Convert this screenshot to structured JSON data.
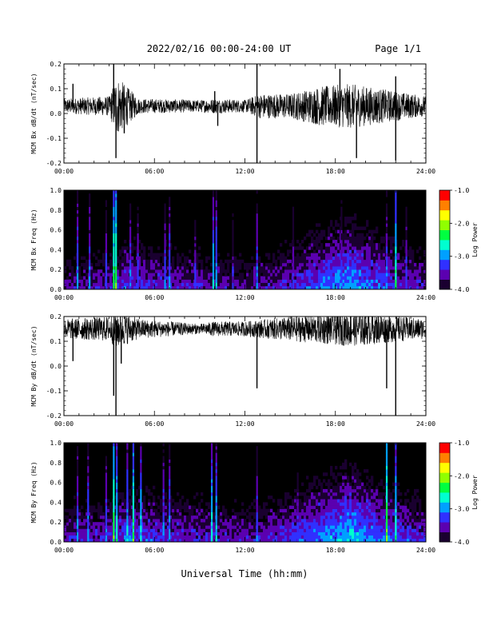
{
  "header": {
    "title": "2022/02/16  00:00-24:00 UT",
    "page": "Page 1/1"
  },
  "footer": {
    "xlabel": "Universal Time (hh:mm)"
  },
  "colors": {
    "background": "#ffffff",
    "trace": "#000000",
    "spectrogram_background": "#000000",
    "colorbar": [
      "#1a0030",
      "#5b00b0",
      "#3030ff",
      "#00a0ff",
      "#00ffd0",
      "#00ff40",
      "#90ff00",
      "#ffff00",
      "#ff8000",
      "#ff0000"
    ]
  },
  "chart_data": [
    {
      "type": "line",
      "ylabel": "MCM Bx dB/dt (nT/sec)",
      "ylim": [
        -0.2,
        0.2
      ],
      "yticks": [
        "0.2",
        "0.1",
        "0.0",
        "-0.1",
        "-0.2"
      ],
      "xlim": [
        0,
        24
      ],
      "xticks": [
        "00:00",
        "06:00",
        "12:00",
        "18:00",
        "24:00"
      ],
      "baseline": 0.03,
      "noise_envelope": {
        "x": [
          0,
          3,
          3.5,
          5,
          9,
          10,
          12,
          13,
          15,
          17,
          19,
          21,
          24
        ],
        "amplitude": [
          0.03,
          0.04,
          0.12,
          0.03,
          0.025,
          0.03,
          0.025,
          0.05,
          0.05,
          0.08,
          0.09,
          0.07,
          0.04
        ]
      },
      "spikes": [
        {
          "x": 0.6,
          "y": 0.12
        },
        {
          "x": 3.3,
          "y": 0.2
        },
        {
          "x": 3.45,
          "y": -0.18
        },
        {
          "x": 4.0,
          "y": -0.08
        },
        {
          "x": 10.0,
          "y": 0.09
        },
        {
          "x": 10.2,
          "y": -0.05
        },
        {
          "x": 12.8,
          "y": 0.2
        },
        {
          "x": 12.8,
          "y": -0.2
        },
        {
          "x": 18.3,
          "y": 0.18
        },
        {
          "x": 19.4,
          "y": -0.18
        },
        {
          "x": 22.0,
          "y": 0.15
        },
        {
          "x": 22.0,
          "y": -0.19
        }
      ]
    },
    {
      "type": "heatmap",
      "ylabel": "MCM Bx Freq (Hz)",
      "ylim": [
        0.0,
        1.0
      ],
      "yticks": [
        "1.0",
        "0.8",
        "0.6",
        "0.4",
        "0.2",
        "0.0"
      ],
      "xlim": [
        0,
        24
      ],
      "xticks": [
        "00:00",
        "06:00",
        "12:00",
        "18:00",
        "24:00"
      ],
      "colorbar": {
        "label": "Log Power",
        "ticks": [
          "-1.0",
          "-2.0",
          "-3.0",
          "-4.0"
        ],
        "range": [
          -4.0,
          -1.0
        ]
      },
      "background_power": {
        "x": [
          0,
          3,
          4,
          9,
          12,
          15,
          17,
          19,
          21,
          24
        ],
        "level": [
          -3.6,
          -3.5,
          -3.3,
          -3.5,
          -3.6,
          -3.4,
          -3.1,
          -2.9,
          -3.2,
          -3.5
        ]
      },
      "vertical_streaks": [
        {
          "x": 0.9,
          "power": -2.9
        },
        {
          "x": 1.7,
          "power": -3.0
        },
        {
          "x": 2.8,
          "power": -3.1
        },
        {
          "x": 3.3,
          "power": -2.3
        },
        {
          "x": 3.45,
          "power": -2.2
        },
        {
          "x": 4.4,
          "power": -3.0
        },
        {
          "x": 4.9,
          "power": -3.1
        },
        {
          "x": 6.7,
          "power": -3.0
        },
        {
          "x": 7.0,
          "power": -2.9
        },
        {
          "x": 8.7,
          "power": -3.2
        },
        {
          "x": 9.9,
          "power": -2.7
        },
        {
          "x": 10.1,
          "power": -2.8
        },
        {
          "x": 11.2,
          "power": -3.3
        },
        {
          "x": 12.8,
          "power": -3.0
        },
        {
          "x": 15.2,
          "power": -3.2
        },
        {
          "x": 18.4,
          "power": -3.1
        },
        {
          "x": 21.4,
          "power": -3.0
        },
        {
          "x": 22.0,
          "power": -2.4
        },
        {
          "x": 22.7,
          "power": -3.1
        }
      ]
    },
    {
      "type": "line",
      "ylabel": "MCM By dB/dt (nT/sec)",
      "ylim": [
        -0.2,
        0.2
      ],
      "yticks": [
        "0.2",
        "0.1",
        "0.0",
        "-0.1",
        "-0.2"
      ],
      "xlim": [
        0,
        24
      ],
      "xticks": [
        "00:00",
        "06:00",
        "12:00",
        "18:00",
        "24:00"
      ],
      "baseline": 0.15,
      "noise_envelope": {
        "x": [
          0,
          3,
          3.5,
          5,
          9,
          10,
          12,
          15,
          17,
          19,
          21,
          24
        ],
        "amplitude": [
          0.04,
          0.05,
          0.08,
          0.04,
          0.02,
          0.03,
          0.03,
          0.05,
          0.06,
          0.07,
          0.06,
          0.04
        ]
      },
      "spikes": [
        {
          "x": 0.6,
          "y": 0.02
        },
        {
          "x": 3.3,
          "y": -0.12
        },
        {
          "x": 3.45,
          "y": -0.2
        },
        {
          "x": 3.8,
          "y": 0.01
        },
        {
          "x": 12.8,
          "y": -0.09
        },
        {
          "x": 21.4,
          "y": -0.09
        },
        {
          "x": 22.0,
          "y": -0.2
        }
      ]
    },
    {
      "type": "heatmap",
      "ylabel": "MCM By Freq (Hz)",
      "ylim": [
        0.0,
        1.0
      ],
      "yticks": [
        "1.0",
        "0.8",
        "0.6",
        "0.4",
        "0.2",
        "0.0"
      ],
      "xlim": [
        0,
        24
      ],
      "xticks": [
        "00:00",
        "06:00",
        "12:00",
        "18:00",
        "24:00"
      ],
      "colorbar": {
        "label": "Log Power",
        "ticks": [
          "-1.0",
          "-2.0",
          "-3.0",
          "-4.0"
        ],
        "range": [
          -4.0,
          -1.0
        ]
      },
      "background_power": {
        "x": [
          0,
          3,
          4,
          9,
          12,
          15,
          17,
          19,
          21,
          24
        ],
        "level": [
          -3.5,
          -3.4,
          -3.2,
          -3.4,
          -3.5,
          -3.3,
          -3.0,
          -2.8,
          -3.1,
          -3.4
        ]
      },
      "vertical_streaks": [
        {
          "x": 0.9,
          "power": -2.9
        },
        {
          "x": 1.6,
          "power": -2.9
        },
        {
          "x": 2.8,
          "power": -3.0
        },
        {
          "x": 3.3,
          "power": -2.2
        },
        {
          "x": 3.5,
          "power": -2.5
        },
        {
          "x": 4.2,
          "power": -2.7
        },
        {
          "x": 4.6,
          "power": -2.3
        },
        {
          "x": 5.1,
          "power": -2.6
        },
        {
          "x": 6.6,
          "power": -3.0
        },
        {
          "x": 7.0,
          "power": -2.9
        },
        {
          "x": 9.8,
          "power": -2.6
        },
        {
          "x": 10.1,
          "power": -2.7
        },
        {
          "x": 12.8,
          "power": -3.0
        },
        {
          "x": 15.5,
          "power": -3.2
        },
        {
          "x": 21.4,
          "power": -2.1
        },
        {
          "x": 22.0,
          "power": -2.5
        }
      ]
    }
  ]
}
